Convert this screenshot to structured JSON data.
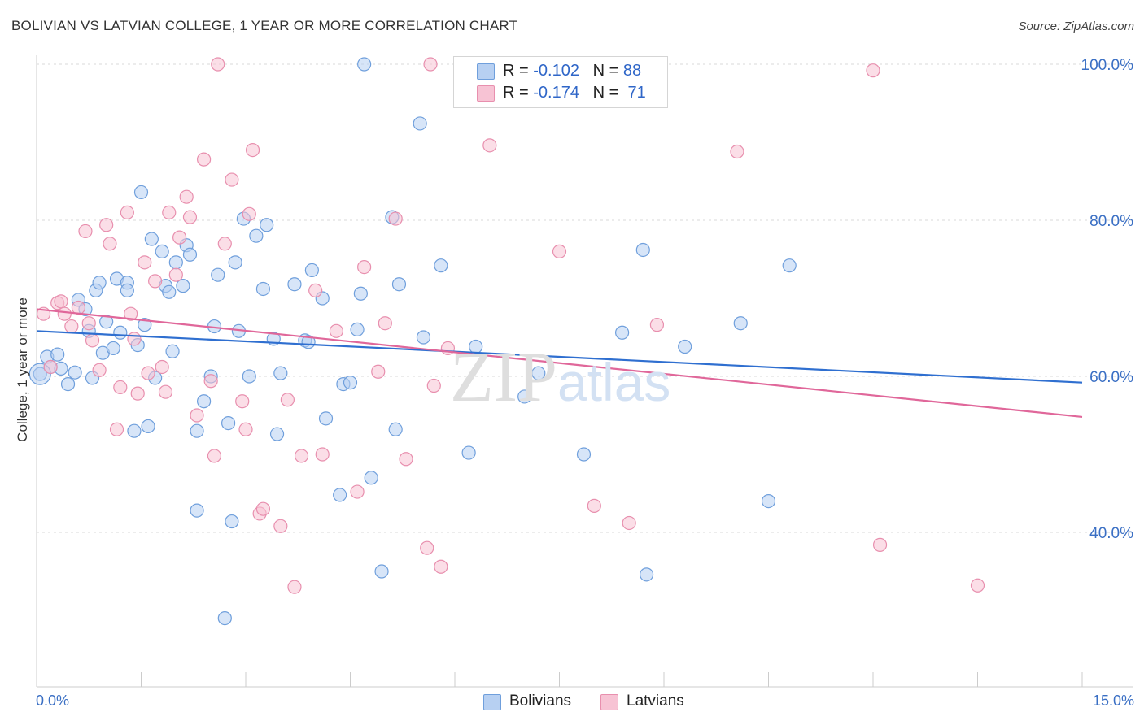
{
  "title": "BOLIVIAN VS LATVIAN COLLEGE, 1 YEAR OR MORE CORRELATION CHART",
  "source": "Source: ZipAtlas.com",
  "watermark": {
    "zip": "ZIP",
    "atlas": "atlas"
  },
  "colors": {
    "blue_fill": "#b7d0f2",
    "blue_stroke": "#6f9fdc",
    "blue_line": "#2f6fd0",
    "pink_fill": "#f7c3d4",
    "pink_stroke": "#e88fae",
    "pink_line": "#e0679a",
    "axis_label": "#3a6fc4",
    "grid": "#d9d9d9"
  },
  "legend": {
    "r_label": "R =",
    "n_label": "N =",
    "rows": [
      {
        "r": "-0.102",
        "n": "88"
      },
      {
        "r": "-0.174",
        "n": "71"
      }
    ]
  },
  "bottom_legend": [
    "Bolivians",
    "Latvians"
  ],
  "chart_data": {
    "type": "scatter",
    "title": "BOLIVIAN VS LATVIAN COLLEGE, 1 YEAR OR MORE CORRELATION CHART",
    "xlabel": "",
    "ylabel": "College, 1 year or more",
    "xlim": [
      0,
      15
    ],
    "ylim": [
      20,
      102
    ],
    "x_tick_labels": [
      "0.0%",
      "15.0%"
    ],
    "y_ticks": [
      40,
      60,
      80,
      100
    ],
    "y_tick_labels": [
      "40.0%",
      "60.0%",
      "80.0%",
      "100.0%"
    ],
    "grid": true,
    "series": [
      {
        "name": "Bolivians",
        "trend": {
          "x": [
            0,
            15
          ],
          "y": [
            65.8,
            59.2
          ]
        },
        "points": [
          [
            0.05,
            60.3
          ],
          [
            0.15,
            62.5
          ],
          [
            0.2,
            61.2
          ],
          [
            0.3,
            62.8
          ],
          [
            0.35,
            61.0
          ],
          [
            0.45,
            59.0
          ],
          [
            0.55,
            60.5
          ],
          [
            0.6,
            69.8
          ],
          [
            0.7,
            68.6
          ],
          [
            0.75,
            65.8
          ],
          [
            0.8,
            59.8
          ],
          [
            0.85,
            71.0
          ],
          [
            0.9,
            72.0
          ],
          [
            0.95,
            63.0
          ],
          [
            1.0,
            67.0
          ],
          [
            1.1,
            63.6
          ],
          [
            1.15,
            72.5
          ],
          [
            1.2,
            65.6
          ],
          [
            1.3,
            72.0
          ],
          [
            1.3,
            71.0
          ],
          [
            1.4,
            53.0
          ],
          [
            1.45,
            64.0
          ],
          [
            1.5,
            83.6
          ],
          [
            1.55,
            66.6
          ],
          [
            1.6,
            53.6
          ],
          [
            1.65,
            77.6
          ],
          [
            1.7,
            59.8
          ],
          [
            1.8,
            76.0
          ],
          [
            1.85,
            71.6
          ],
          [
            1.9,
            70.8
          ],
          [
            1.95,
            63.2
          ],
          [
            2.0,
            74.6
          ],
          [
            2.1,
            71.6
          ],
          [
            2.15,
            76.8
          ],
          [
            2.2,
            75.6
          ],
          [
            2.3,
            53.0
          ],
          [
            2.3,
            42.8
          ],
          [
            2.4,
            56.8
          ],
          [
            2.5,
            60.0
          ],
          [
            2.55,
            66.4
          ],
          [
            2.6,
            73.0
          ],
          [
            2.7,
            29.0
          ],
          [
            2.75,
            54.0
          ],
          [
            2.8,
            41.4
          ],
          [
            2.85,
            74.6
          ],
          [
            2.9,
            65.8
          ],
          [
            2.97,
            80.2
          ],
          [
            3.05,
            60.0
          ],
          [
            3.15,
            78.0
          ],
          [
            3.25,
            71.2
          ],
          [
            3.3,
            79.4
          ],
          [
            3.4,
            64.8
          ],
          [
            3.45,
            52.6
          ],
          [
            3.5,
            60.4
          ],
          [
            3.7,
            71.8
          ],
          [
            3.85,
            64.6
          ],
          [
            3.9,
            64.4
          ],
          [
            3.95,
            73.6
          ],
          [
            4.1,
            70.0
          ],
          [
            4.15,
            54.6
          ],
          [
            4.35,
            44.8
          ],
          [
            4.4,
            59.0
          ],
          [
            4.5,
            59.2
          ],
          [
            4.6,
            66.0
          ],
          [
            4.65,
            70.6
          ],
          [
            4.7,
            100.0
          ],
          [
            4.8,
            47.0
          ],
          [
            4.95,
            35.0
          ],
          [
            5.1,
            80.4
          ],
          [
            5.15,
            53.2
          ],
          [
            5.2,
            71.8
          ],
          [
            5.5,
            92.4
          ],
          [
            5.55,
            65.0
          ],
          [
            5.8,
            74.2
          ],
          [
            6.2,
            50.2
          ],
          [
            6.3,
            63.8
          ],
          [
            7.0,
            57.4
          ],
          [
            7.2,
            60.4
          ],
          [
            7.85,
            50.0
          ],
          [
            8.4,
            65.6
          ],
          [
            8.7,
            76.2
          ],
          [
            8.75,
            34.6
          ],
          [
            9.3,
            63.8
          ],
          [
            10.1,
            66.8
          ],
          [
            10.5,
            44.0
          ],
          [
            10.8,
            74.2
          ]
        ]
      },
      {
        "name": "Latvians",
        "trend": {
          "x": [
            0,
            15
          ],
          "y": [
            68.6,
            54.8
          ]
        },
        "points": [
          [
            0.1,
            68.0
          ],
          [
            0.2,
            61.2
          ],
          [
            0.3,
            69.4
          ],
          [
            0.35,
            69.6
          ],
          [
            0.4,
            68.0
          ],
          [
            0.5,
            66.4
          ],
          [
            0.6,
            68.8
          ],
          [
            0.7,
            78.6
          ],
          [
            0.75,
            66.8
          ],
          [
            0.8,
            64.6
          ],
          [
            0.9,
            60.8
          ],
          [
            1.0,
            79.4
          ],
          [
            1.05,
            77.0
          ],
          [
            1.15,
            53.2
          ],
          [
            1.2,
            58.6
          ],
          [
            1.3,
            81.0
          ],
          [
            1.35,
            68.0
          ],
          [
            1.4,
            64.8
          ],
          [
            1.45,
            57.8
          ],
          [
            1.55,
            74.6
          ],
          [
            1.6,
            60.4
          ],
          [
            1.7,
            72.2
          ],
          [
            1.8,
            61.2
          ],
          [
            1.85,
            58.0
          ],
          [
            1.9,
            81.0
          ],
          [
            2.0,
            73.0
          ],
          [
            2.05,
            77.8
          ],
          [
            2.15,
            83.0
          ],
          [
            2.2,
            80.4
          ],
          [
            2.3,
            55.0
          ],
          [
            2.4,
            87.8
          ],
          [
            2.5,
            59.4
          ],
          [
            2.55,
            49.8
          ],
          [
            2.6,
            100.0
          ],
          [
            2.7,
            77.0
          ],
          [
            2.8,
            85.2
          ],
          [
            2.95,
            56.8
          ],
          [
            3.0,
            53.2
          ],
          [
            3.05,
            80.8
          ],
          [
            3.1,
            89.0
          ],
          [
            3.2,
            42.4
          ],
          [
            3.25,
            43.0
          ],
          [
            3.5,
            40.8
          ],
          [
            3.6,
            57.0
          ],
          [
            3.7,
            33.0
          ],
          [
            3.8,
            49.8
          ],
          [
            4.0,
            71.0
          ],
          [
            4.1,
            50.0
          ],
          [
            4.3,
            65.8
          ],
          [
            4.6,
            45.2
          ],
          [
            4.7,
            74.0
          ],
          [
            4.9,
            60.6
          ],
          [
            5.0,
            66.8
          ],
          [
            5.15,
            80.2
          ],
          [
            5.3,
            49.4
          ],
          [
            5.6,
            38.0
          ],
          [
            5.65,
            100.0
          ],
          [
            5.7,
            58.8
          ],
          [
            5.8,
            35.6
          ],
          [
            5.9,
            63.6
          ],
          [
            6.5,
            89.6
          ],
          [
            7.5,
            76.0
          ],
          [
            8.0,
            43.4
          ],
          [
            8.5,
            41.2
          ],
          [
            8.9,
            66.6
          ],
          [
            10.05,
            88.8
          ],
          [
            12.0,
            99.2
          ],
          [
            12.1,
            38.4
          ],
          [
            13.5,
            33.2
          ]
        ]
      }
    ]
  }
}
